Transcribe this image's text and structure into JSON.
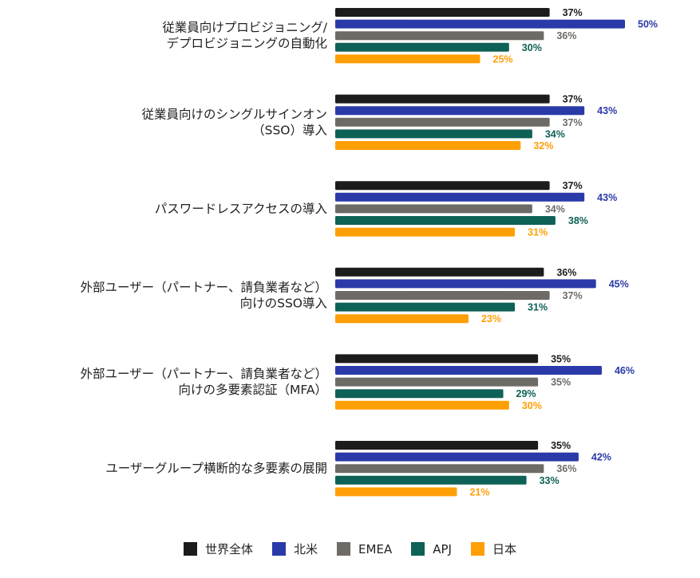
{
  "chart_data": {
    "type": "bar",
    "orientation": "horizontal",
    "categories": [
      [
        "従業員向けプロビジョニング/",
        "デプロビジョニングの自動化"
      ],
      [
        "従業員向けのシングルサインオン",
        "（SSO）導入"
      ],
      [
        "パスワードレスアクセスの導入"
      ],
      [
        "外部ユーザー（パートナー、請負業者など）",
        "向けのSSO導入"
      ],
      [
        "外部ユーザー（パートナー、請負業者など）",
        "向けの多要素認証（MFA）"
      ],
      [
        "ユーザーグループ横断的な多要素の展開"
      ]
    ],
    "series": [
      {
        "name": "世界全体",
        "color": "#1c1c1c",
        "label_color": "#1c1c1c",
        "values": [
          37,
          37,
          37,
          36,
          35,
          35
        ]
      },
      {
        "name": "北米",
        "color": "#2a3aa8",
        "label_color": "#2a3aa8",
        "values": [
          50,
          43,
          43,
          45,
          46,
          42
        ]
      },
      {
        "name": "EMEA",
        "color": "#6e6a66",
        "label_color": "#6e6a66",
        "values": [
          36,
          37,
          34,
          37,
          35,
          36
        ]
      },
      {
        "name": "APJ",
        "color": "#0e6156",
        "label_color": "#0e6156",
        "values": [
          30,
          34,
          38,
          31,
          29,
          33
        ]
      },
      {
        "name": "日本",
        "color": "#ff9f06",
        "label_color": "#ff9f06",
        "values": [
          25,
          32,
          31,
          23,
          30,
          21
        ]
      }
    ],
    "value_suffix": "%",
    "xlim": [
      0,
      50
    ],
    "legend_position": "bottom-center"
  }
}
